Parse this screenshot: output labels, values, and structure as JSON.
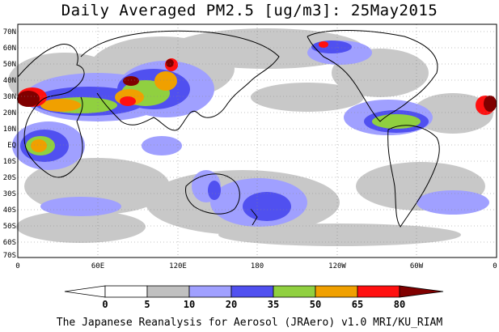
{
  "title": "Daily Averaged PM2.5 [ug/m3]: 25May2015",
  "footer": "The Japanese Reanalysis for Aerosol (JRAero) v1.0 MRI/KU_RIAM",
  "map": {
    "lat_labels": [
      "70N",
      "60N",
      "50N",
      "40N",
      "30N",
      "20N",
      "10N",
      "EQ",
      "10S",
      "20S",
      "30S",
      "40S",
      "50S",
      "60S",
      "70S"
    ],
    "lon_labels": [
      "0",
      "60E",
      "120E",
      "180",
      "120W",
      "60W",
      "0"
    ]
  },
  "colorbar": {
    "levels": [
      "0",
      "5",
      "10",
      "20",
      "35",
      "50",
      "65",
      "80"
    ],
    "colors": [
      "#ffffff",
      "#c0c0c0",
      "#a0a0ff",
      "#5050f0",
      "#90d040",
      "#f0a000",
      "#ff1010",
      "#800000"
    ]
  }
}
